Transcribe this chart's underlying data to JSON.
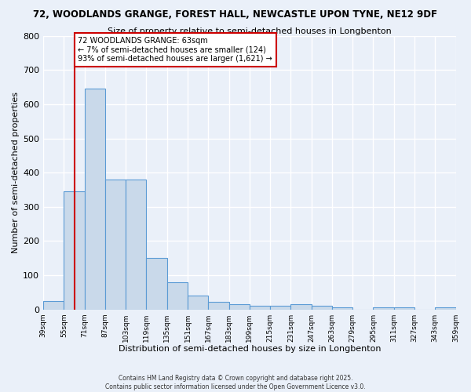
{
  "title_line1": "72, WOODLANDS GRANGE, FOREST HALL, NEWCASTLE UPON TYNE, NE12 9DF",
  "title_line2": "Size of property relative to semi-detached houses in Longbenton",
  "xlabel": "Distribution of semi-detached houses by size in Longbenton",
  "ylabel": "Number of semi-detached properties",
  "bin_labels": [
    "39sqm",
    "55sqm",
    "71sqm",
    "87sqm",
    "103sqm",
    "119sqm",
    "135sqm",
    "151sqm",
    "167sqm",
    "183sqm",
    "199sqm",
    "215sqm",
    "231sqm",
    "247sqm",
    "263sqm",
    "279sqm",
    "295sqm",
    "311sqm",
    "327sqm",
    "343sqm",
    "359sqm"
  ],
  "bin_edges": [
    39,
    55,
    71,
    87,
    103,
    119,
    135,
    151,
    167,
    183,
    199,
    215,
    231,
    247,
    263,
    279,
    295,
    311,
    327,
    343,
    359
  ],
  "bar_heights": [
    25,
    345,
    645,
    380,
    380,
    150,
    80,
    40,
    22,
    15,
    10,
    10,
    15,
    10,
    5,
    0,
    5,
    5,
    0,
    5
  ],
  "bar_color": "#c9d9ea",
  "bar_edge_color": "#5b9bd5",
  "property_size": 63,
  "vline_color": "#cc0000",
  "annotation_text": "72 WOODLANDS GRANGE: 63sqm\n← 7% of semi-detached houses are smaller (124)\n93% of semi-detached houses are larger (1,621) →",
  "annotation_box_color": "#ffffff",
  "annotation_box_edge": "#cc0000",
  "ylim": [
    0,
    800
  ],
  "yticks": [
    0,
    100,
    200,
    300,
    400,
    500,
    600,
    700,
    800
  ],
  "background_color": "#eaf0f9",
  "grid_color": "#ffffff",
  "footer_line1": "Contains HM Land Registry data © Crown copyright and database right 2025.",
  "footer_line2": "Contains public sector information licensed under the Open Government Licence v3.0."
}
